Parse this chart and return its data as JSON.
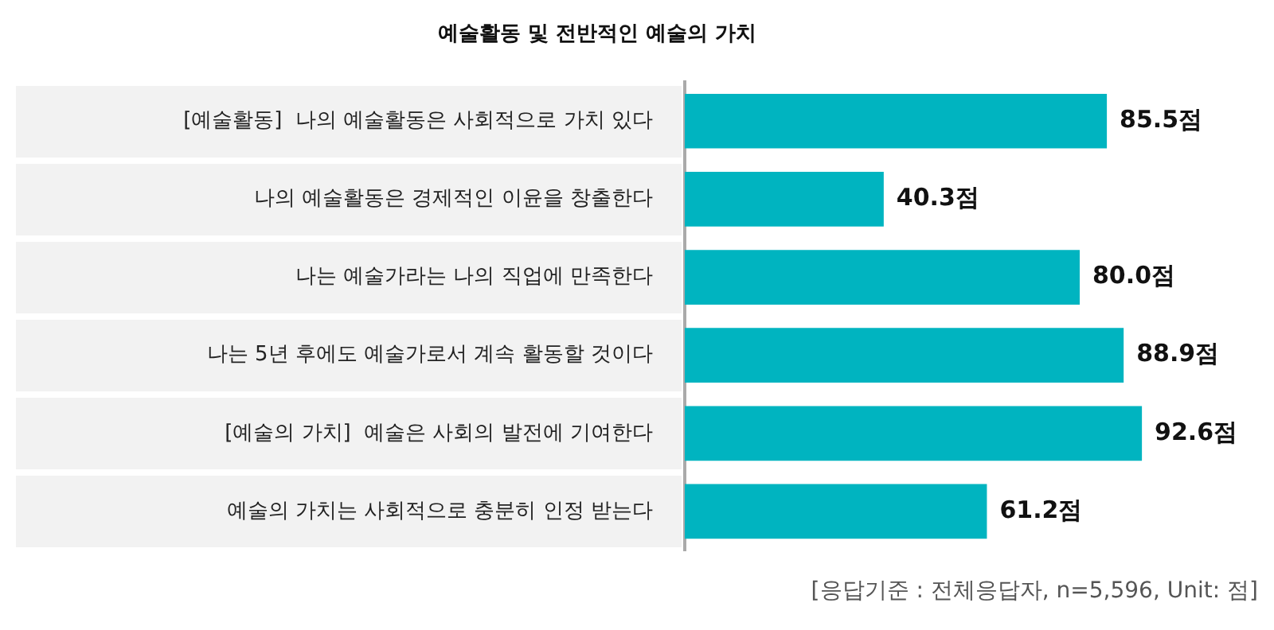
{
  "chart_data": {
    "type": "bar",
    "orientation": "horizontal",
    "title": "예술활동 및 전반적인 예술의 가치",
    "categories": [
      "[예술활동]  나의 예술활동은 사회적으로 가치 있다",
      "나의 예술활동은 경제적인 이윤을 창출한다",
      "나는 예술가라는 나의 직업에 만족한다",
      "나는 5년 후에도 예술가로서 계속 활동할 것이다",
      "[예술의 가치]  예술은 사회의 발전에 기여한다",
      "예술의 가치는 사회적으로 충분히 인정 받는다"
    ],
    "values": [
      85.5,
      40.3,
      80.0,
      88.9,
      92.6,
      61.2
    ],
    "value_labels": [
      "85.5점",
      "40.3점",
      "80.0점",
      "88.9점",
      "92.6점",
      "61.2점"
    ],
    "color": "#00b4c0",
    "tick_labels": "y",
    "annotations": [
      "[응답기준 : 전체응답자, n=5,596, Unit: 점]"
    ]
  }
}
